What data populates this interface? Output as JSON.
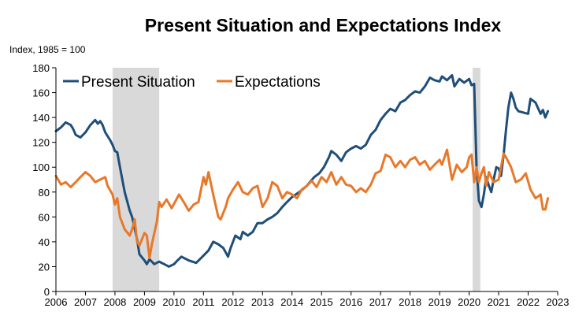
{
  "chart_data": {
    "type": "line",
    "title": "Present Situation and Expectations Index",
    "ylabel": "Index, 1985 = 100",
    "xlabel": "",
    "xlim": [
      2006,
      2023
    ],
    "ylim": [
      0,
      180
    ],
    "x_ticks": [
      2006,
      2007,
      2008,
      2009,
      2010,
      2011,
      2012,
      2013,
      2014,
      2015,
      2016,
      2017,
      2018,
      2019,
      2020,
      2021,
      2022,
      2023
    ],
    "y_ticks": [
      0,
      20,
      40,
      60,
      80,
      100,
      120,
      140,
      160,
      180
    ],
    "grid": false,
    "legend_position": "top-left",
    "recessions": [
      {
        "start": 2007.92,
        "end": 2009.5
      },
      {
        "start": 2020.12,
        "end": 2020.38
      }
    ],
    "recession_color": "#d9d9d9",
    "series": [
      {
        "name": "Present Situation",
        "color": "#1f4e79",
        "x": [
          2006.0,
          2006.17,
          2006.33,
          2006.5,
          2006.58,
          2006.67,
          2006.83,
          2007.0,
          2007.17,
          2007.33,
          2007.42,
          2007.5,
          2007.58,
          2007.67,
          2007.83,
          2007.92,
          2008.0,
          2008.08,
          2008.17,
          2008.33,
          2008.5,
          2008.58,
          2008.75,
          2008.83,
          2009.0,
          2009.08,
          2009.17,
          2009.33,
          2009.5,
          2009.67,
          2009.83,
          2010.0,
          2010.08,
          2010.25,
          2010.5,
          2010.75,
          2010.92,
          2011.17,
          2011.33,
          2011.5,
          2011.67,
          2011.83,
          2011.92,
          2012.08,
          2012.25,
          2012.33,
          2012.5,
          2012.67,
          2012.83,
          2013.0,
          2013.17,
          2013.33,
          2013.5,
          2013.67,
          2013.83,
          2014.0,
          2014.25,
          2014.5,
          2014.75,
          2014.92,
          2015.08,
          2015.25,
          2015.33,
          2015.5,
          2015.67,
          2015.83,
          2016.0,
          2016.17,
          2016.33,
          2016.5,
          2016.67,
          2016.83,
          2017.0,
          2017.17,
          2017.33,
          2017.5,
          2017.67,
          2017.83,
          2018.0,
          2018.17,
          2018.33,
          2018.5,
          2018.67,
          2018.83,
          2019.0,
          2019.08,
          2019.25,
          2019.42,
          2019.5,
          2019.67,
          2019.83,
          2020.0,
          2020.08,
          2020.17,
          2020.25,
          2020.33,
          2020.42,
          2020.5,
          2020.58,
          2020.67,
          2020.75,
          2020.83,
          2020.92,
          2021.0,
          2021.08,
          2021.17,
          2021.25,
          2021.33,
          2021.42,
          2021.5,
          2021.58,
          2021.67,
          2021.83,
          2022.0,
          2022.08,
          2022.25,
          2022.42,
          2022.5,
          2022.58,
          2022.67
        ],
        "values": [
          129,
          132,
          136,
          134,
          131,
          126,
          124,
          128,
          134,
          138,
          135,
          137,
          134,
          128,
          122,
          118,
          113,
          112,
          100,
          80,
          65,
          60,
          42,
          30,
          25,
          22,
          26,
          22,
          24,
          22,
          20,
          22,
          24,
          28,
          25,
          23,
          27,
          33,
          40,
          38,
          35,
          28,
          35,
          45,
          42,
          48,
          45,
          48,
          55,
          55,
          58,
          60,
          63,
          68,
          72,
          76,
          80,
          85,
          92,
          95,
          100,
          108,
          113,
          110,
          105,
          112,
          115,
          117,
          115,
          118,
          126,
          130,
          138,
          143,
          147,
          145,
          152,
          154,
          158,
          161,
          160,
          165,
          172,
          170,
          169,
          173,
          170,
          174,
          165,
          171,
          168,
          171,
          166,
          167,
          100,
          73,
          68,
          78,
          92,
          85,
          80,
          90,
          100,
          99,
          93,
          110,
          130,
          148,
          160,
          155,
          148,
          145,
          144,
          143,
          155,
          152,
          143,
          146,
          140,
          145
        ]
      },
      {
        "name": "Expectations",
        "color": "#e8782a",
        "x": [
          2006.0,
          2006.17,
          2006.33,
          2006.5,
          2006.67,
          2006.83,
          2007.0,
          2007.17,
          2007.33,
          2007.5,
          2007.67,
          2007.75,
          2007.92,
          2008.0,
          2008.08,
          2008.17,
          2008.33,
          2008.5,
          2008.58,
          2008.67,
          2008.75,
          2008.83,
          2009.0,
          2009.08,
          2009.17,
          2009.25,
          2009.42,
          2009.5,
          2009.58,
          2009.75,
          2009.92,
          2010.17,
          2010.33,
          2010.5,
          2010.67,
          2010.83,
          2011.0,
          2011.08,
          2011.17,
          2011.33,
          2011.5,
          2011.58,
          2011.75,
          2011.83,
          2012.0,
          2012.17,
          2012.33,
          2012.5,
          2012.67,
          2012.83,
          2013.0,
          2013.17,
          2013.33,
          2013.5,
          2013.67,
          2013.83,
          2014.0,
          2014.17,
          2014.33,
          2014.5,
          2014.67,
          2014.83,
          2015.0,
          2015.17,
          2015.33,
          2015.5,
          2015.67,
          2015.83,
          2016.0,
          2016.17,
          2016.33,
          2016.5,
          2016.67,
          2016.83,
          2017.0,
          2017.17,
          2017.33,
          2017.5,
          2017.67,
          2017.83,
          2018.0,
          2018.17,
          2018.33,
          2018.5,
          2018.67,
          2018.83,
          2019.0,
          2019.08,
          2019.25,
          2019.42,
          2019.58,
          2019.75,
          2019.92,
          2020.0,
          2020.08,
          2020.17,
          2020.25,
          2020.33,
          2020.42,
          2020.5,
          2020.58,
          2020.67,
          2020.83,
          2021.0,
          2021.17,
          2021.25,
          2021.42,
          2021.58,
          2021.75,
          2021.92,
          2022.08,
          2022.25,
          2022.42,
          2022.5,
          2022.58,
          2022.67
        ],
        "values": [
          93,
          86,
          88,
          84,
          88,
          92,
          96,
          93,
          88,
          90,
          92,
          85,
          78,
          70,
          75,
          60,
          50,
          45,
          50,
          58,
          40,
          37,
          47,
          45,
          27,
          38,
          56,
          72,
          68,
          74,
          67,
          78,
          72,
          65,
          70,
          72,
          92,
          86,
          96,
          78,
          60,
          58,
          68,
          75,
          82,
          88,
          80,
          78,
          83,
          85,
          68,
          75,
          88,
          85,
          75,
          80,
          78,
          75,
          82,
          85,
          89,
          84,
          92,
          88,
          96,
          86,
          92,
          86,
          85,
          80,
          83,
          80,
          86,
          95,
          97,
          110,
          108,
          100,
          105,
          100,
          106,
          108,
          102,
          105,
          98,
          102,
          106,
          102,
          114,
          90,
          102,
          96,
          100,
          108,
          110,
          88,
          100,
          88,
          95,
          100,
          85,
          96,
          88,
          90,
          111,
          108,
          100,
          88,
          90,
          95,
          82,
          75,
          78,
          66,
          66,
          75
        ]
      }
    ]
  }
}
